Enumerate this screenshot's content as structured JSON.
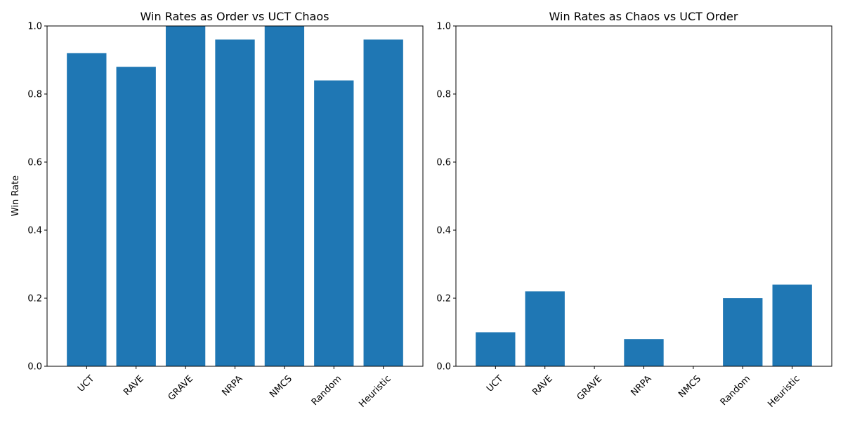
{
  "colors": {
    "bar": "#1f77b4",
    "axis": "#000000",
    "background": "#ffffff"
  },
  "chart_data": [
    {
      "type": "bar",
      "title": "Win Rates as Order vs UCT Chaos",
      "xlabel": "",
      "ylabel": "Win Rate",
      "categories": [
        "UCT",
        "RAVE",
        "GRAVE",
        "NRPA",
        "NMCS",
        "Random",
        "Heuristic"
      ],
      "values": [
        0.92,
        0.88,
        1.0,
        0.96,
        1.0,
        0.84,
        0.96
      ],
      "ylim": [
        0,
        1
      ],
      "yticks": [
        "0.0",
        "0.2",
        "0.4",
        "0.6",
        "0.8",
        "1.0"
      ],
      "xtick_rotation": "45 degrees",
      "grid": false,
      "legend": "none"
    },
    {
      "type": "bar",
      "title": "Win Rates as Chaos vs UCT Order",
      "xlabel": "",
      "ylabel": "",
      "categories": [
        "UCT",
        "RAVE",
        "GRAVE",
        "NRPA",
        "NMCS",
        "Random",
        "Heuristic"
      ],
      "values": [
        0.1,
        0.22,
        0.0,
        0.08,
        0.0,
        0.2,
        0.24
      ],
      "ylim": [
        0,
        1
      ],
      "yticks": [
        "0.0",
        "0.2",
        "0.4",
        "0.6",
        "0.8",
        "1.0"
      ],
      "xtick_rotation": "45 degrees",
      "grid": false,
      "legend": "none"
    }
  ]
}
